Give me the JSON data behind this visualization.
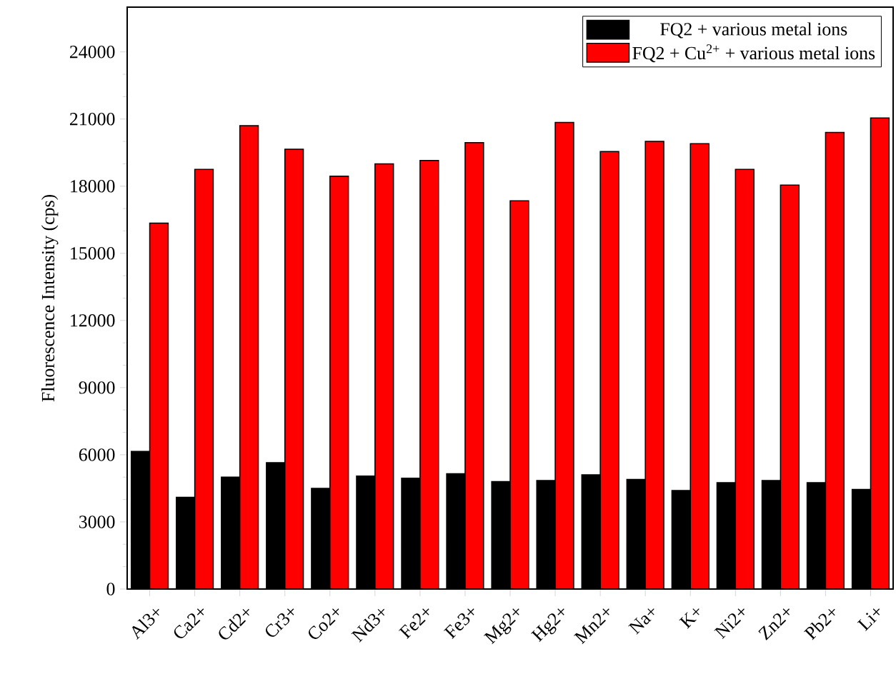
{
  "chart_data": {
    "type": "bar",
    "ylabel": "Fluorescence Intensity (cps)",
    "categories": [
      "Al3+",
      "Ca2+",
      "Cd2+",
      "Cr3+",
      "Co2+",
      "Nd3+",
      "Fe2+",
      "Fe3+",
      "Mg2+",
      "Hg2+",
      "Mn2+",
      "Na+",
      "K+",
      "Ni2+",
      "Zn2+",
      "Pb2+",
      "Li+"
    ],
    "series": [
      {
        "name": "FQ2 + various metal ions",
        "color": "#000000",
        "values": [
          6150,
          4100,
          5000,
          5650,
          4500,
          5050,
          4950,
          5150,
          4800,
          4850,
          5100,
          4900,
          4400,
          4750,
          4850,
          4750,
          4450
        ]
      },
      {
        "name": "FQ2 + Cu$^{2+}$ + various metal ions",
        "color": "#ff0000",
        "values": [
          16350,
          18750,
          20700,
          19650,
          18450,
          19000,
          19150,
          19950,
          17350,
          20850,
          19550,
          20000,
          19900,
          18750,
          18050,
          20400,
          21050
        ]
      }
    ],
    "ylim": [
      0,
      26000
    ],
    "yticks": [
      0,
      3000,
      6000,
      9000,
      12000,
      15000,
      18000,
      21000,
      24000
    ],
    "legend": "top right",
    "grid": false
  }
}
